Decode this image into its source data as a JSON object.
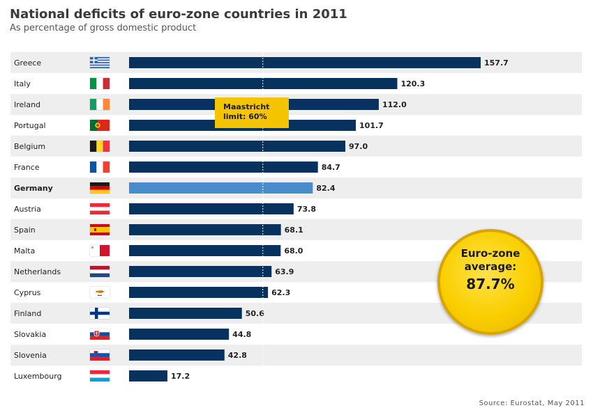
{
  "colors": {
    "bar": "#08325e",
    "highlight": "#4a8ccb",
    "band": "#eeeeee",
    "accent": "#f5c400"
  },
  "chart_data": {
    "type": "bar",
    "orientation": "horizontal",
    "title": "National deficits of euro-zone countries in 2011",
    "subtitle": "As percentage of gross domestic product",
    "categories": [
      "Greece",
      "Italy",
      "Ireland",
      "Portugal",
      "Belgium",
      "France",
      "Germany",
      "Austria",
      "Spain",
      "Malta",
      "Netherlands",
      "Cyprus",
      "Finland",
      "Slovakia",
      "Slovenia",
      "Luxembourg"
    ],
    "values": [
      157.7,
      120.3,
      112.0,
      101.7,
      97.0,
      84.7,
      82.4,
      73.8,
      68.1,
      68.0,
      63.9,
      62.3,
      50.6,
      44.8,
      42.8,
      17.2
    ],
    "value_labels": [
      "157.7",
      "120.3",
      "112.0",
      "101.7",
      "97.0",
      "84.7",
      "82.4",
      "73.8",
      "68.1",
      "68.0",
      "63.9",
      "62.3",
      "50.6",
      "44.8",
      "42.8",
      "17.2"
    ],
    "highlight": "Germany",
    "xlim": [
      0,
      160
    ],
    "reference_line": {
      "value": 60,
      "label_line1": "Maastricht",
      "label_line2": "limit: 60%"
    },
    "average": {
      "line1": "Euro-zone",
      "line2": "average:",
      "value_text": "87.7%"
    },
    "source": "Source: Eurostat, May 2011"
  },
  "flags": [
    "greece-flag-icon",
    "italy-flag-icon",
    "ireland-flag-icon",
    "portugal-flag-icon",
    "belgium-flag-icon",
    "france-flag-icon",
    "germany-flag-icon",
    "austria-flag-icon",
    "spain-flag-icon",
    "malta-flag-icon",
    "netherlands-flag-icon",
    "cyprus-flag-icon",
    "finland-flag-icon",
    "slovakia-flag-icon",
    "slovenia-flag-icon",
    "luxembourg-flag-icon"
  ]
}
